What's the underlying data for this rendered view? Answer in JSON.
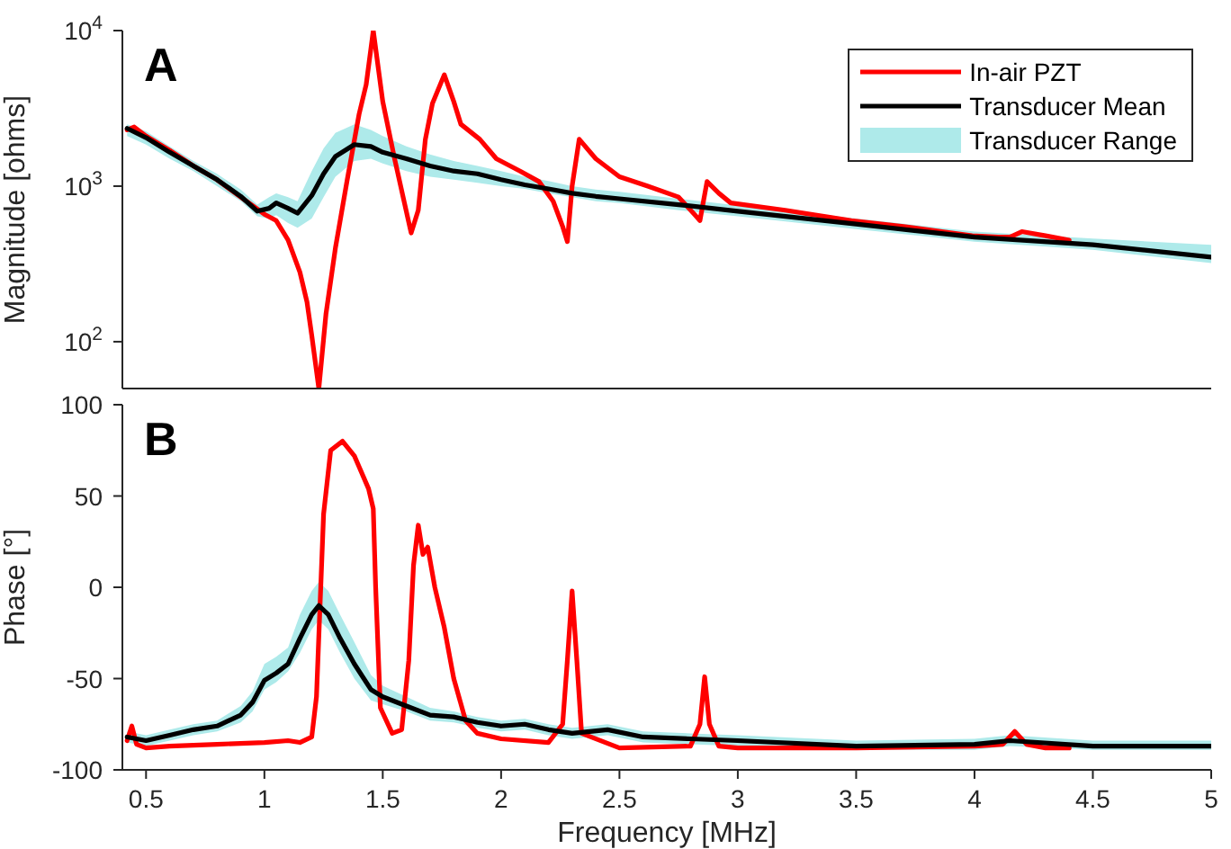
{
  "chart_data": [
    {
      "type": "line",
      "ylabel": "Magnitude [ohms]",
      "annotations": [
        "A"
      ],
      "log": "y",
      "xlim": [
        0.4,
        5
      ],
      "xticks": [
        0.5,
        1,
        1.5,
        2,
        2.5,
        3,
        3.5,
        4,
        4.5,
        5
      ],
      "ylim": [
        50,
        10000
      ],
      "yticks": [
        {
          "value": 100,
          "label": "10$^{2}$"
        },
        {
          "value": 1000,
          "label": "10$^{3}$"
        },
        {
          "value": 10000,
          "label": "10$^{4}$"
        }
      ],
      "tick_labels": "y",
      "legend": "top right",
      "series": [
        {
          "name": "In-air PZT",
          "color": "#ff0000",
          "x": [
            0.42,
            0.45,
            0.5,
            0.6,
            0.7,
            0.8,
            0.9,
            1.0,
            1.05,
            1.1,
            1.15,
            1.18,
            1.2,
            1.23,
            1.26,
            1.3,
            1.35,
            1.4,
            1.43,
            1.46,
            1.5,
            1.55,
            1.59,
            1.62,
            1.65,
            1.68,
            1.71,
            1.76,
            1.8,
            1.83,
            1.91,
            1.98,
            2.08,
            2.16,
            2.22,
            2.26,
            2.28,
            2.3,
            2.33,
            2.4,
            2.5,
            2.62,
            2.75,
            2.82,
            2.84,
            2.87,
            2.92,
            2.97,
            3.2,
            3.48,
            3.7,
            3.99,
            4.1,
            4.15,
            4.2,
            4.3,
            4.4
          ],
          "values": [
            2300,
            2400,
            2100,
            1700,
            1350,
            1100,
            850,
            660,
            600,
            450,
            280,
            180,
            110,
            50,
            150,
            400,
            1100,
            2900,
            4500,
            10000,
            3500,
            1500,
            800,
            500,
            700,
            2000,
            3400,
            5200,
            3500,
            2500,
            2000,
            1500,
            1250,
            1070,
            800,
            550,
            440,
            1000,
            2000,
            1500,
            1150,
            1000,
            850,
            650,
            600,
            1070,
            900,
            780,
            700,
            600,
            550,
            480,
            470,
            470,
            510,
            480,
            450
          ]
        },
        {
          "name": "Transducer Mean",
          "color": "#000000",
          "x": [
            0.42,
            0.5,
            0.6,
            0.7,
            0.8,
            0.9,
            0.97,
            1.02,
            1.05,
            1.1,
            1.14,
            1.2,
            1.25,
            1.3,
            1.38,
            1.45,
            1.5,
            1.6,
            1.7,
            1.8,
            1.9,
            2.0,
            2.1,
            2.2,
            2.3,
            2.4,
            2.5,
            2.75,
            3.0,
            3.5,
            4.0,
            4.5,
            5.0
          ],
          "values": [
            2350,
            2050,
            1650,
            1350,
            1100,
            860,
            690,
            720,
            780,
            720,
            670,
            870,
            1200,
            1550,
            1850,
            1800,
            1650,
            1500,
            1350,
            1250,
            1200,
            1100,
            1020,
            960,
            900,
            860,
            830,
            760,
            690,
            570,
            470,
            420,
            350
          ]
        },
        {
          "name": "Transducer Range",
          "type": "area",
          "color": "#aeeaea",
          "x": [
            0.42,
            0.5,
            0.6,
            0.7,
            0.8,
            0.9,
            0.97,
            1.02,
            1.05,
            1.1,
            1.14,
            1.2,
            1.25,
            1.3,
            1.38,
            1.45,
            1.5,
            1.6,
            1.7,
            1.8,
            1.9,
            2.0,
            2.1,
            2.2,
            2.3,
            2.4,
            2.5,
            2.75,
            3.0,
            3.5,
            4.0,
            4.5,
            5.0
          ],
          "values": [
            null,
            null,
            null,
            null,
            null,
            null,
            null,
            null,
            null,
            null,
            null,
            null,
            null,
            null,
            null,
            null,
            null,
            null,
            null,
            null,
            null,
            null,
            null,
            null,
            null,
            null,
            null,
            null,
            null,
            null,
            null,
            null,
            null
          ],
          "lower": [
            2100,
            1850,
            1500,
            1250,
            1000,
            800,
            640,
            620,
            650,
            580,
            540,
            620,
            850,
            1150,
            1450,
            1500,
            1400,
            1250,
            1150,
            1100,
            1050,
            1000,
            960,
            900,
            850,
            800,
            780,
            700,
            640,
            530,
            440,
            390,
            320
          ],
          "upper": [
            2500,
            2250,
            1800,
            1450,
            1200,
            950,
            760,
            850,
            900,
            850,
            800,
            1250,
            1750,
            2200,
            2500,
            2300,
            2100,
            1800,
            1600,
            1450,
            1350,
            1250,
            1150,
            1080,
            1000,
            950,
            920,
            830,
            750,
            620,
            510,
            460,
            420
          ]
        }
      ]
    },
    {
      "type": "line",
      "xlabel": "Frequency [MHz]",
      "ylabel": "Phase [°]",
      "annotations": [
        "B"
      ],
      "xlim": [
        0.4,
        5
      ],
      "xticks": [
        0.5,
        1,
        1.5,
        2,
        2.5,
        3,
        3.5,
        4,
        4.5,
        5
      ],
      "ylim": [
        -100,
        100
      ],
      "yticks": [
        -100,
        -50,
        0,
        50,
        100
      ],
      "series": [
        {
          "color": "#ff0000",
          "x": [
            0.42,
            0.44,
            0.46,
            0.5,
            0.6,
            0.8,
            1.0,
            1.1,
            1.15,
            1.2,
            1.22,
            1.25,
            1.28,
            1.33,
            1.38,
            1.4,
            1.44,
            1.46,
            1.47,
            1.49,
            1.54,
            1.58,
            1.61,
            1.63,
            1.65,
            1.67,
            1.69,
            1.72,
            1.76,
            1.8,
            1.85,
            1.9,
            2.0,
            2.2,
            2.26,
            2.28,
            2.3,
            2.32,
            2.34,
            2.5,
            2.8,
            2.84,
            2.86,
            2.88,
            2.92,
            3.0,
            3.5,
            4.0,
            4.12,
            4.17,
            4.22,
            4.3,
            4.4
          ],
          "values": [
            -84,
            -76,
            -86,
            -88,
            -87,
            -86,
            -85,
            -84,
            -85,
            -82,
            -60,
            40,
            75,
            80,
            72,
            66,
            54,
            43,
            0,
            -66,
            -80,
            -78,
            -40,
            12,
            34,
            18,
            22,
            0,
            -22,
            -50,
            -73,
            -80,
            -83,
            -85,
            -75,
            -40,
            -2,
            -40,
            -80,
            -88,
            -87,
            -75,
            -49,
            -75,
            -87,
            -88,
            -88,
            -87,
            -86,
            -79,
            -86,
            -88,
            -88
          ]
        },
        {
          "color": "#000000",
          "x": [
            0.42,
            0.5,
            0.6,
            0.7,
            0.8,
            0.9,
            0.95,
            1.0,
            1.05,
            1.1,
            1.15,
            1.2,
            1.23,
            1.27,
            1.32,
            1.38,
            1.45,
            1.5,
            1.6,
            1.7,
            1.8,
            1.9,
            2.0,
            2.1,
            2.2,
            2.3,
            2.45,
            2.6,
            2.8,
            3.0,
            3.5,
            4.0,
            4.15,
            4.5,
            5.0
          ],
          "values": [
            -82,
            -84,
            -81,
            -78,
            -76,
            -70,
            -63,
            -51,
            -47,
            -42,
            -28,
            -15,
            -10,
            -15,
            -28,
            -42,
            -56,
            -60,
            -65,
            -70,
            -71,
            -74,
            -76,
            -75,
            -78,
            -80,
            -78,
            -82,
            -83,
            -84,
            -87,
            -86,
            -84,
            -87,
            -87
          ]
        },
        {
          "type": "area",
          "color": "#aeeaea",
          "x": [
            0.42,
            0.5,
            0.6,
            0.7,
            0.8,
            0.9,
            0.95,
            1.0,
            1.05,
            1.1,
            1.15,
            1.2,
            1.23,
            1.27,
            1.32,
            1.38,
            1.45,
            1.5,
            1.6,
            1.7,
            1.8,
            1.9,
            2.0,
            2.1,
            2.2,
            2.3,
            2.45,
            2.6,
            2.8,
            3.0,
            3.5,
            4.0,
            4.15,
            4.5,
            5.0
          ],
          "values": [
            null,
            null,
            null,
            null,
            null,
            null,
            null,
            null,
            null,
            null,
            null,
            null,
            null,
            null,
            null,
            null,
            null,
            null,
            null,
            null,
            null,
            null,
            null,
            null,
            null,
            null,
            null,
            null,
            null,
            null,
            null,
            null,
            null,
            null,
            null
          ],
          "lower": [
            -85,
            -87,
            -84,
            -81,
            -79,
            -74,
            -68,
            -56,
            -52,
            -46,
            -36,
            -23,
            -18,
            -23,
            -36,
            -50,
            -62,
            -64,
            -68,
            -73,
            -74,
            -77,
            -79,
            -78,
            -81,
            -83,
            -81,
            -85,
            -86,
            -87,
            -89,
            -89,
            -87,
            -89,
            -89
          ],
          "upper": [
            -79,
            -81,
            -78,
            -75,
            -73,
            -65,
            -57,
            -42,
            -38,
            -33,
            -15,
            -2,
            3,
            -2,
            -15,
            -30,
            -48,
            -54,
            -60,
            -66,
            -68,
            -71,
            -73,
            -72,
            -75,
            -77,
            -75,
            -79,
            -80,
            -81,
            -84,
            -83,
            -81,
            -84,
            -84
          ]
        }
      ]
    }
  ]
}
